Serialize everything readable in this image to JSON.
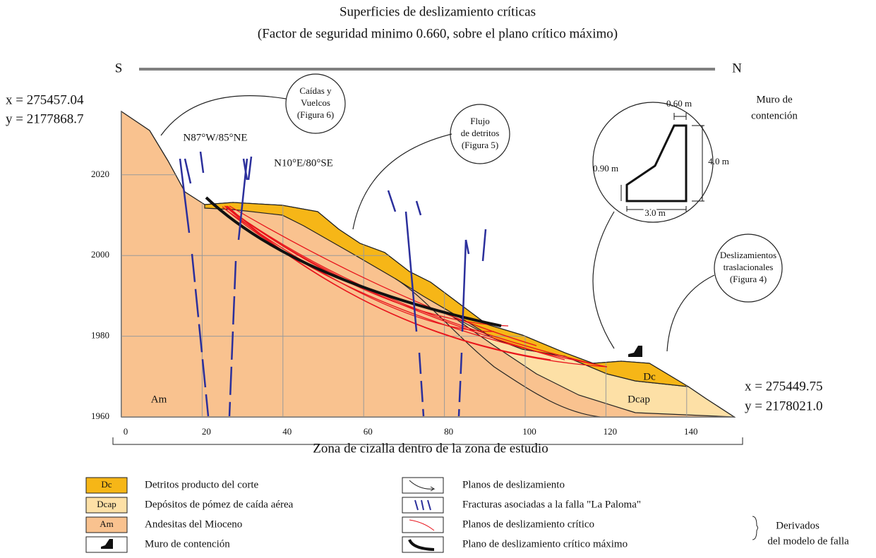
{
  "title": "Superficies de deslizamiento críticas",
  "subtitle": "(Factor de seguridad minimo 0.660, sobre el plano crítico máximo)",
  "profile": {
    "start": "S",
    "end": "N"
  },
  "coords": {
    "start": [
      "x = 275457.04",
      "y = 2177868.7"
    ],
    "end": [
      "x = 275449.75",
      "y = 2178021.0"
    ]
  },
  "axes": {
    "xticks": [
      0,
      20,
      40,
      60,
      80,
      100,
      120,
      140
    ],
    "yticks": [
      1960,
      1980,
      2000,
      2020
    ],
    "xlabel": "Zona de cizalla dentro de la zona de estudio"
  },
  "layers": {
    "am": "Am",
    "dc": "Dc",
    "dcap": "Dcap"
  },
  "fractures": [
    "N87°W/85°NE",
    "N10°E/80°SE"
  ],
  "callouts": [
    {
      "lines": [
        "Caídas y",
        "Vuelcos",
        "(Figura 6)"
      ]
    },
    {
      "lines": [
        "Flujo",
        "de detritos",
        "(Figura 5)"
      ]
    },
    {
      "lines": [
        "Deslizamientos",
        "traslacionales",
        "(Figura 4)"
      ]
    }
  ],
  "wall": {
    "title": [
      "Muro de",
      "contención"
    ],
    "dims": {
      "top": "0.60 m",
      "height": "4.0 m",
      "step": "0.90 m",
      "base": "3.0 m"
    }
  },
  "legend": {
    "layers": [
      {
        "swatch": "Dc",
        "label": "Detritos producto del corte"
      },
      {
        "swatch": "Dcap",
        "label": "Depósitos de pómez de caída aérea"
      },
      {
        "swatch": "Am",
        "label": "Andesitas del Mioceno"
      },
      {
        "label": "Muro de contención"
      }
    ],
    "lines": [
      {
        "label": "Planos de deslizamiento"
      },
      {
        "label": "Fracturas asociadas a la falla \"La Paloma\""
      },
      {
        "label": "Planos de deslizamiento crítico"
      },
      {
        "label": "Plano de deslizamiento crítico máximo"
      }
    ],
    "note": [
      "Derivados",
      "del modelo de falla"
    ]
  }
}
